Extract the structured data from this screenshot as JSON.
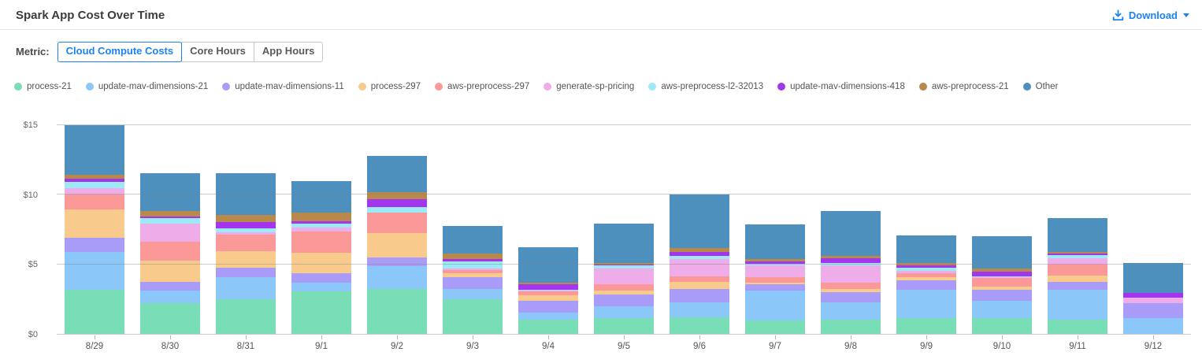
{
  "header": {
    "title": "Spark App Cost Over Time",
    "download_label": "Download"
  },
  "controls": {
    "metric_label": "Metric:",
    "options": [
      {
        "label": "Cloud Compute Costs",
        "selected": true
      },
      {
        "label": "Core Hours",
        "selected": false
      },
      {
        "label": "App Hours",
        "selected": false
      }
    ]
  },
  "colors": {
    "accent_blue": "#1b82f5",
    "selected_button_text": "#1b82f5",
    "unselected_button_text": "#5a5a5a",
    "title_text": "#3c3c3c",
    "axis_text": "#666666",
    "label_text": "#555555",
    "axis_line": "#c9c9c9",
    "divider": "#e4e4e4"
  },
  "chart_data": {
    "type": "bar",
    "stacked": true,
    "title": "Spark App Cost Over Time",
    "xlabel": "",
    "ylabel": "",
    "grid": true,
    "legend_position": "top",
    "ylim": [
      0,
      15.62
    ],
    "yticks": [
      {
        "label": "$0",
        "value": 0
      },
      {
        "label": "$5",
        "value": 5
      },
      {
        "label": "$10",
        "value": 10
      },
      {
        "label": "$15",
        "value": 15
      }
    ],
    "categories": [
      "8/29",
      "8/30",
      "8/31",
      "9/1",
      "9/2",
      "9/3",
      "9/4",
      "9/5",
      "9/6",
      "9/7",
      "9/8",
      "9/9",
      "9/10",
      "9/11",
      "9/12"
    ],
    "series": [
      {
        "name": "process-21",
        "color": "#79ddb6",
        "values": [
          3.15,
          2.2,
          2.5,
          3.05,
          3.25,
          2.5,
          1.0,
          1.15,
          1.2,
          0.95,
          1.0,
          1.15,
          1.15,
          1.0,
          0
        ]
      },
      {
        "name": "update-mav-dimensions-21",
        "color": "#8cc7f9",
        "values": [
          2.75,
          0.9,
          1.6,
          0.65,
          1.6,
          0.75,
          0.55,
          0.85,
          1.05,
          2.15,
          1.25,
          2.0,
          1.2,
          2.15,
          1.15
        ]
      },
      {
        "name": "update-mav-dimensions-11",
        "color": "#a89cf8",
        "values": [
          1.0,
          0.65,
          0.65,
          0.65,
          0.65,
          0.85,
          0.85,
          0.8,
          1.0,
          0.45,
          0.75,
          0.7,
          0.8,
          0.6,
          1.05
        ]
      },
      {
        "name": "process-297",
        "color": "#f8cb8c",
        "values": [
          2.05,
          1.5,
          1.2,
          1.5,
          1.75,
          0.25,
          0.4,
          0.3,
          0.5,
          0.15,
          0.2,
          0.2,
          0.25,
          0.45,
          0
        ]
      },
      {
        "name": "aws-preprocess-297",
        "color": "#fb9999",
        "values": [
          1.05,
          1.35,
          1.2,
          1.5,
          1.45,
          0.25,
          0.25,
          0.45,
          0.4,
          0.4,
          0.5,
          0.3,
          0.6,
          0.8,
          0
        ]
      },
      {
        "name": "generate-sp-pricing",
        "color": "#eeace8",
        "values": [
          0.45,
          1.3,
          0.15,
          0.3,
          0,
          0.1,
          0.05,
          1.15,
          1.2,
          0.8,
          1.25,
          0.2,
          0.05,
          0.45,
          0.4
        ]
      },
      {
        "name": "aws-preprocess-l2-32013",
        "color": "#9ce9f8",
        "values": [
          0.45,
          0.4,
          0.3,
          0.3,
          0.4,
          0.5,
          0.05,
          0.2,
          0.25,
          0.15,
          0.15,
          0.2,
          0.1,
          0.2,
          0
        ]
      },
      {
        "name": "update-mav-dimensions-418",
        "color": "#a335ef",
        "values": [
          0.25,
          0.15,
          0.45,
          0.15,
          0.55,
          0.15,
          0.4,
          0.1,
          0.3,
          0.15,
          0.35,
          0.15,
          0.35,
          0.1,
          0.35
        ]
      },
      {
        "name": "aws-preprocess-21",
        "color": "#b8894a",
        "values": [
          0.3,
          0.4,
          0.5,
          0.6,
          0.55,
          0.4,
          0.15,
          0.1,
          0.25,
          0.15,
          0.15,
          0.2,
          0.2,
          0.15,
          0
        ]
      },
      {
        "name": "Other",
        "color": "#4d8fbd",
        "values": [
          3.55,
          2.7,
          3.0,
          2.3,
          2.6,
          2.0,
          2.55,
          2.8,
          3.85,
          2.5,
          3.25,
          2.0,
          2.3,
          2.4,
          2.15
        ]
      }
    ]
  }
}
